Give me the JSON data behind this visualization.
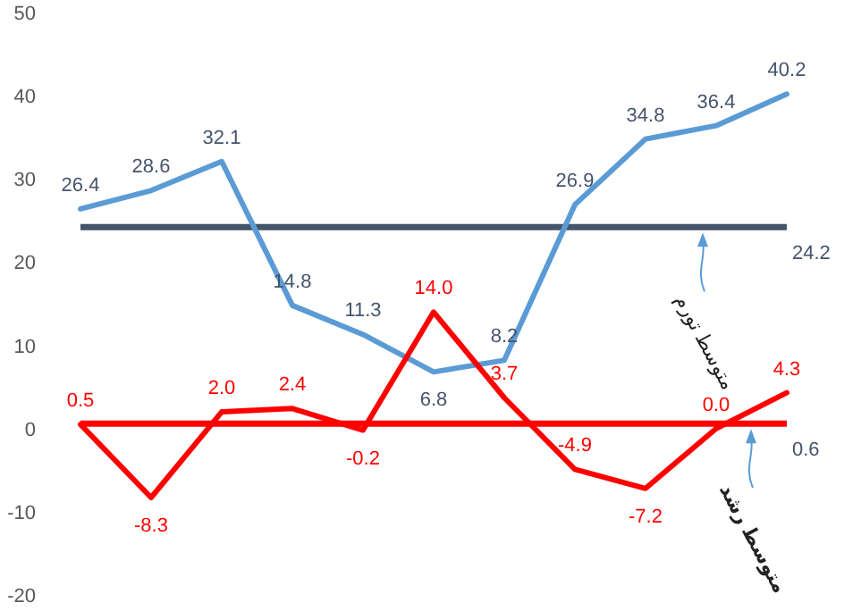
{
  "chart_data": {
    "type": "line",
    "categories": [
      null,
      null,
      null,
      null,
      null,
      null,
      null,
      null,
      null,
      null,
      null
    ],
    "series": [
      {
        "type": "line",
        "color": "#5b9bd5",
        "values": [
          26.4,
          28.6,
          32.1,
          14.8,
          11.3,
          6.8,
          8.2,
          26.9,
          34.8,
          36.4,
          40.2
        ],
        "value_labels": [
          "26.4",
          "28.6",
          "32.1",
          "14.8",
          "11.3",
          "6.8",
          "8.2",
          "26.9",
          "34.8",
          "36.4",
          "40.2"
        ]
      },
      {
        "type": "line",
        "color": "#ff0000",
        "values": [
          0.5,
          -8.3,
          2.0,
          2.4,
          -0.2,
          14.0,
          3.7,
          -4.9,
          -7.2,
          0.0,
          4.3
        ],
        "value_labels": [
          "0.5",
          "-8.3",
          "2.0",
          "2.4",
          "-0.2",
          "14.0",
          "3.7",
          "-4.9",
          "-7.2",
          "0.0",
          "4.3"
        ]
      }
    ],
    "ylim": [
      -20,
      50
    ],
    "yticks": [
      -20,
      -10,
      0,
      10,
      20,
      30,
      40,
      50
    ],
    "ref_lines": [
      {
        "axis": "y",
        "value": 24.2,
        "label": "24.2",
        "color": "#44546a"
      },
      {
        "axis": "y",
        "value": 0.6,
        "label": "0.6",
        "color": "#ff0000"
      }
    ],
    "annotations": [
      {
        "text": "متوسط تورم",
        "y": 24.2
      },
      {
        "text": "متوسط رشد",
        "y": 0.6
      }
    ],
    "grid": false,
    "tick_labels": "y",
    "marker": "none",
    "line_style": "solid"
  }
}
